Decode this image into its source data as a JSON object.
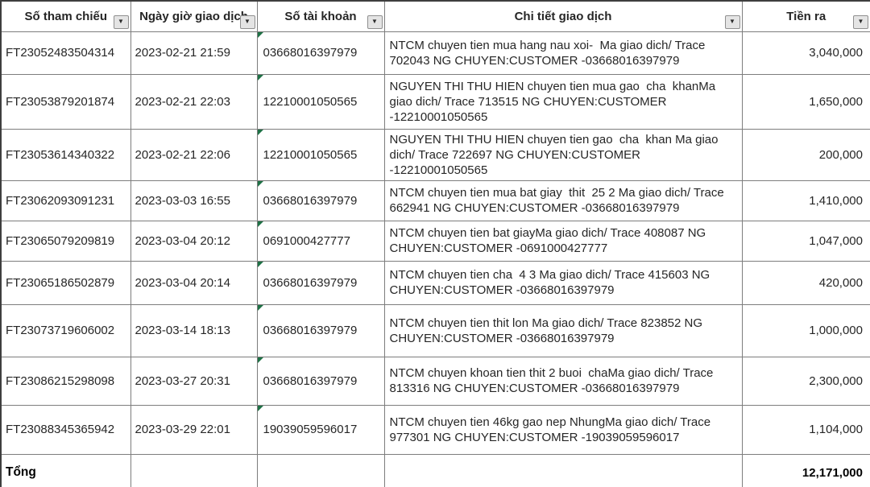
{
  "colors": {
    "border_inner": "#7d7d7d",
    "border_outer": "#3f3f3f",
    "error_marker_green": "#1e7145",
    "filter_button_bg": "#e4e4e4",
    "text_body": "#262626",
    "text_header": "#000000"
  },
  "icons": {
    "filter_dropdown_glyph": "▼"
  },
  "table": {
    "columns": [
      {
        "label": "Số tham chiếu"
      },
      {
        "label": "Ngày giờ giao dịch"
      },
      {
        "label": "Số tài khoản"
      },
      {
        "label": "Chi tiết giao dịch"
      },
      {
        "label": "Tiền ra"
      }
    ],
    "rows": [
      {
        "ref": "FT23052483504314",
        "datetime": "2023-02-21 21:59",
        "account": "03668016397979",
        "detail": "NTCM chuyen tien mua hang nau xoi-  Ma giao dich/ Trace 702043 NG CHUYEN:CUSTOMER -03668016397979",
        "amount": "3,040,000"
      },
      {
        "ref": "FT23053879201874",
        "datetime": "2023-02-21 22:03",
        "account": "12210001050565",
        "detail": "NGUYEN THI THU HIEN chuyen tien mua gao  cha  khanMa giao dich/ Trace 713515 NG CHUYEN:CUSTOMER -12210001050565",
        "amount": "1,650,000"
      },
      {
        "ref": "FT23053614340322",
        "datetime": "2023-02-21 22:06",
        "account": "12210001050565",
        "detail": "NGUYEN THI THU HIEN chuyen tien gao  cha  khan Ma giao dich/ Trace 722697 NG CHUYEN:CUSTOMER -12210001050565",
        "amount": "200,000"
      },
      {
        "ref": "FT23062093091231",
        "datetime": "2023-03-03 16:55",
        "account": "03668016397979",
        "detail": "NTCM chuyen tien mua bat giay  thit  25 2 Ma giao dich/ Trace 662941 NG CHUYEN:CUSTOMER -03668016397979",
        "amount": "1,410,000"
      },
      {
        "ref": "FT23065079209819",
        "datetime": "2023-03-04 20:12",
        "account": "0691000427777",
        "detail": "NTCM chuyen tien bat giayMa giao dich/ Trace 408087 NG CHUYEN:CUSTOMER -0691000427777",
        "amount": "1,047,000"
      },
      {
        "ref": "FT23065186502879",
        "datetime": "2023-03-04 20:14",
        "account": "03668016397979",
        "detail": "NTCM chuyen tien cha  4 3 Ma giao dich/ Trace 415603 NG CHUYEN:CUSTOMER -03668016397979",
        "amount": "420,000"
      },
      {
        "ref": "FT23073719606002",
        "datetime": "2023-03-14 18:13",
        "account": "03668016397979",
        "detail": "NTCM chuyen tien thit lon Ma giao dich/ Trace 823852 NG CHUYEN:CUSTOMER -03668016397979",
        "amount": "1,000,000"
      },
      {
        "ref": "FT23086215298098",
        "datetime": "2023-03-27 20:31",
        "account": "03668016397979",
        "detail": "NTCM chuyen khoan tien thit 2 buoi  chaMa giao dich/ Trace 813316 NG CHUYEN:CUSTOMER -03668016397979",
        "amount": "2,300,000"
      },
      {
        "ref": "FT23088345365942",
        "datetime": "2023-03-29 22:01",
        "account": "19039059596017",
        "detail": "NTCM chuyen tien 46kg gao nep NhungMa giao dich/ Trace 977301 NG CHUYEN:CUSTOMER -19039059596017",
        "amount": "1,104,000"
      }
    ],
    "total": {
      "label": "Tổng",
      "amount": "12,171,000"
    }
  }
}
